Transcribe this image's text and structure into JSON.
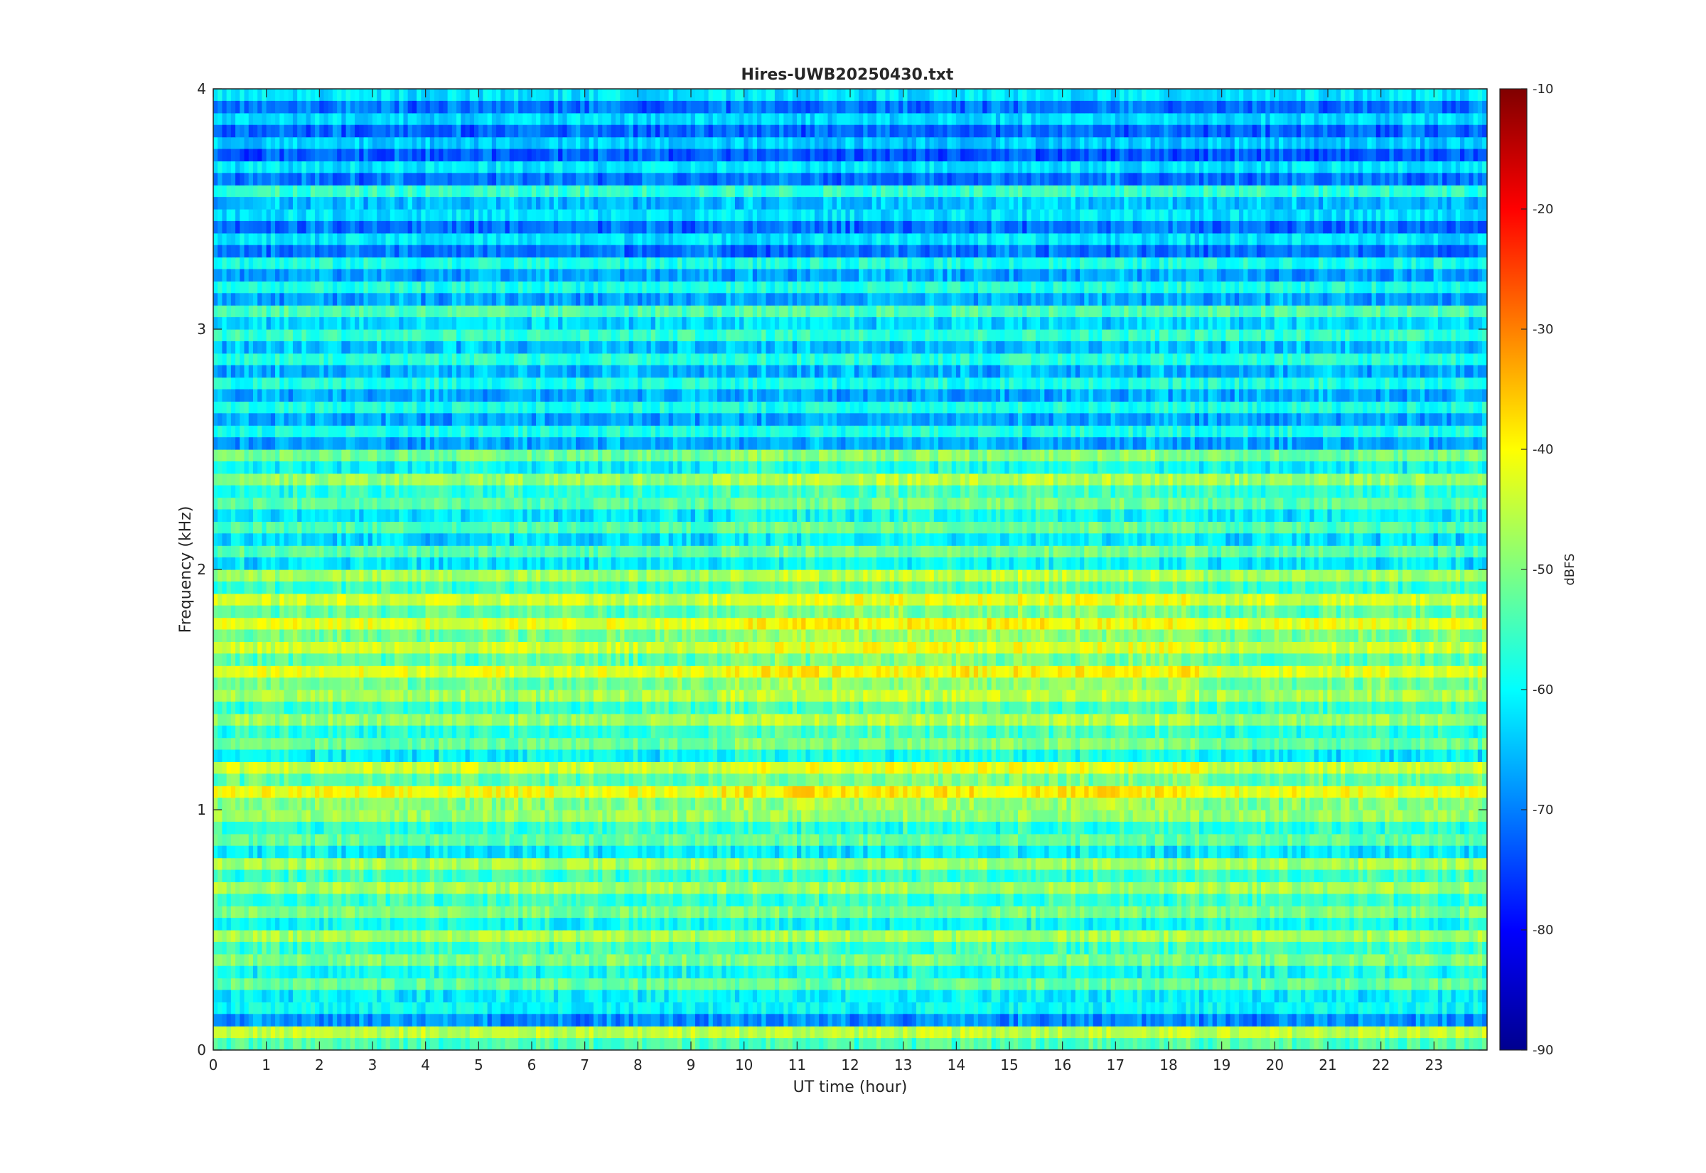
{
  "chart_data": {
    "type": "heatmap",
    "title": "Hires-UWB20250430.txt",
    "xlabel": "UT time (hour)",
    "ylabel": "Frequency (kHz)",
    "colorbar_label": "dBFS",
    "colormap": "jet",
    "xlim": [
      0,
      24
    ],
    "ylim": [
      0,
      4
    ],
    "clim": [
      -90,
      -10
    ],
    "x_ticks": [
      0,
      1,
      2,
      3,
      4,
      5,
      6,
      7,
      8,
      9,
      10,
      11,
      12,
      13,
      14,
      15,
      16,
      17,
      18,
      19,
      20,
      21,
      22,
      23
    ],
    "y_ticks": [
      0,
      1,
      2,
      3,
      4
    ],
    "colorbar_ticks": [
      -90,
      -80,
      -70,
      -60,
      -50,
      -40,
      -30,
      -20,
      -10
    ],
    "grid": false,
    "time_resolution_hours": 0.0833,
    "frequency_resolution_khz": 0.1,
    "band_levels": {
      "frequency_khz": [
        0.05,
        0.15,
        0.25,
        0.35,
        0.45,
        0.55,
        0.65,
        0.75,
        0.85,
        0.95,
        1.05,
        1.15,
        1.25,
        1.35,
        1.45,
        1.55,
        1.65,
        1.75,
        1.85,
        1.95,
        2.05,
        2.15,
        2.25,
        2.35,
        2.45,
        2.55,
        2.65,
        2.75,
        2.85,
        2.95,
        3.05,
        3.15,
        3.25,
        3.35,
        3.45,
        3.55,
        3.65,
        3.75,
        3.85,
        3.95
      ],
      "typical_dbfs": [
        -45,
        -60,
        -52,
        -50,
        -47,
        -50,
        -47,
        -47,
        -52,
        -48,
        -41,
        -44,
        -52,
        -48,
        -47,
        -42,
        -44,
        -42,
        -44,
        -47,
        -53,
        -54,
        -53,
        -48,
        -51,
        -58,
        -58,
        -58,
        -57,
        -56,
        -54,
        -58,
        -58,
        -62,
        -62,
        -56,
        -62,
        -64,
        -63,
        -62
      ],
      "description_units": "dBFS"
    }
  }
}
